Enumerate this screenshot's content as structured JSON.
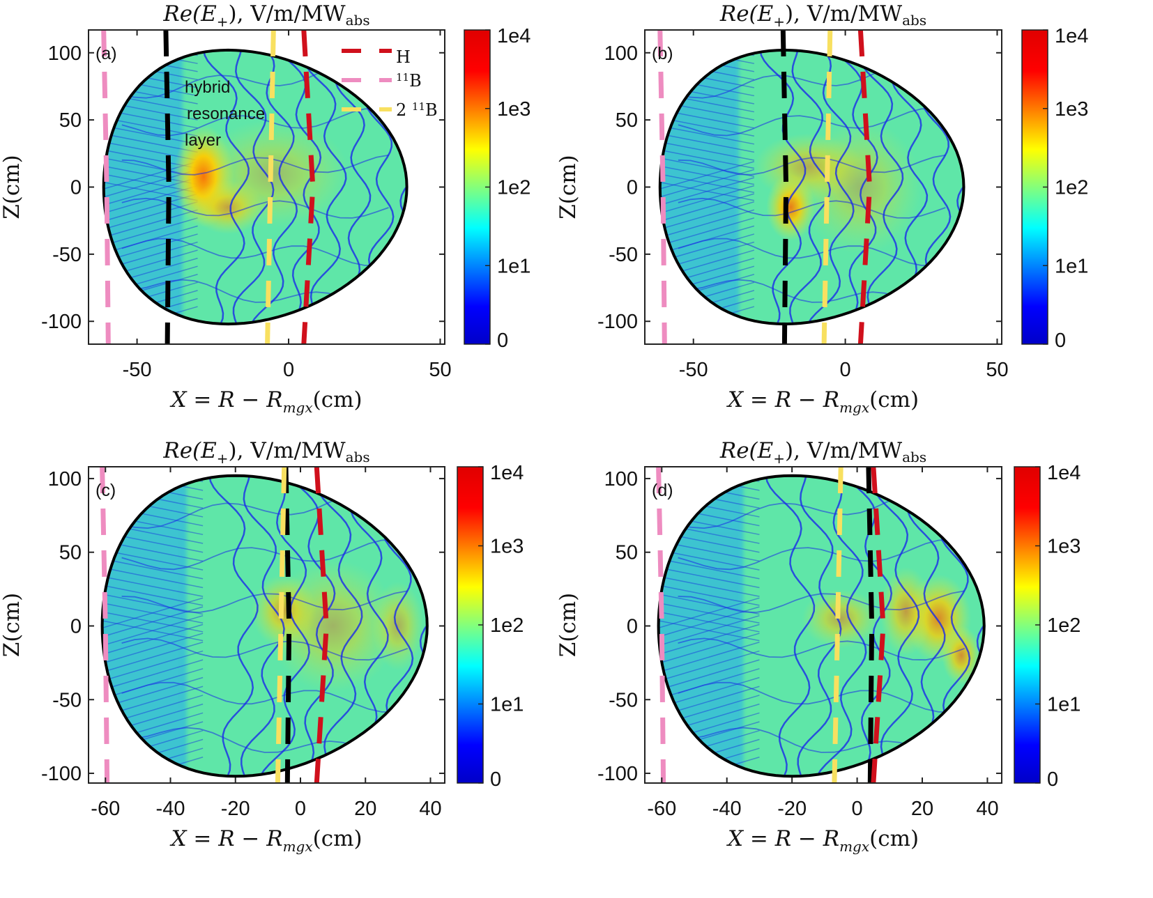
{
  "chart_data": {
    "type": "heatmap",
    "colorbar": {
      "scale": "log (symmetric, 0 at bottom)",
      "tick_labels": [
        "0",
        "1e1",
        "1e2",
        "1e3",
        "1e4"
      ],
      "colormap": [
        "#0000c8",
        "#0000ff",
        "#00ffff",
        "#ffff00",
        "#ff0000",
        "#d00000"
      ]
    },
    "resonance_colors": {
      "H": "#d0101c",
      "B11": "#ee8cc0",
      "B11_2": "#f8e060",
      "hybrid": "#000000"
    },
    "legend": [
      {
        "key": "H",
        "label": "H",
        "sup": "",
        "prefix": ""
      },
      {
        "key": "B11",
        "label": "B",
        "sup": "11",
        "prefix": ""
      },
      {
        "key": "B11_2",
        "label": "B",
        "sup": "11",
        "prefix": "2 "
      }
    ],
    "annotation": [
      "hybrid",
      "resonance",
      "layer"
    ],
    "panels": [
      {
        "id": "a",
        "label": "(a)",
        "title": {
          "a": "Re(E",
          "b": "+",
          "c": "), V/m/MW",
          "d": "abs"
        },
        "xlabel": {
          "a": "X = R − R",
          "b": "mgx",
          "c": "(cm)"
        },
        "ylabel": "Z(cm)",
        "xlim": [
          -66,
          51.5
        ],
        "ylim": [
          -117,
          117
        ],
        "xticks": [
          -50,
          0,
          50
        ],
        "yticks": [
          -100,
          -50,
          0,
          50,
          100
        ],
        "hybrid_x": -40,
        "hot": [
          [
            -28,
            8,
            10,
            38,
            0.95
          ],
          [
            -20,
            -15,
            12,
            20,
            0.6
          ],
          [
            -5,
            10,
            25,
            40,
            0.35
          ]
        ],
        "show_legend": true,
        "show_annotation": true
      },
      {
        "id": "b",
        "label": "(b)",
        "title": {
          "a": "Re(E",
          "b": "+",
          "c": "), V/m/MW",
          "d": "abs"
        },
        "xlabel": {
          "a": "X = R − R",
          "b": "mgx",
          "c": "(cm)"
        },
        "ylabel": "Z(cm)",
        "xlim": [
          -66,
          51.5
        ],
        "ylim": [
          -117,
          117
        ],
        "xticks": [
          -50,
          0,
          50
        ],
        "yticks": [
          -100,
          -50,
          0,
          50,
          100
        ],
        "hybrid_x": -20,
        "hot": [
          [
            -18,
            -15,
            8,
            25,
            0.85
          ],
          [
            -12,
            15,
            18,
            25,
            0.5
          ],
          [
            5,
            0,
            20,
            50,
            0.35
          ]
        ],
        "show_legend": false,
        "show_annotation": false
      },
      {
        "id": "c",
        "label": "(c)",
        "title": {
          "a": "Re(E",
          "b": "+",
          "c": "), V/m/MW",
          "d": "abs"
        },
        "xlabel": {
          "a": "X = R − R",
          "b": "mgx",
          "c": "(cm)"
        },
        "ylabel": "Z(cm)",
        "xlim": [
          -65.2,
          44.4
        ],
        "ylim": [
          -106.6,
          108
        ],
        "xticks": [
          -60,
          -40,
          -20,
          0,
          20,
          40
        ],
        "yticks": [
          -100,
          -50,
          0,
          50,
          100
        ],
        "hybrid_x": -4,
        "hot": [
          [
            -5,
            10,
            10,
            25,
            0.6
          ],
          [
            10,
            0,
            20,
            45,
            0.4
          ],
          [
            30,
            0,
            8,
            30,
            0.45
          ]
        ],
        "show_legend": false,
        "show_annotation": false
      },
      {
        "id": "d",
        "label": "(d)",
        "title": {
          "a": "Re(E",
          "b": "+",
          "c": "), V/m/MW",
          "d": "abs"
        },
        "xlabel": {
          "a": "X = R − R",
          "b": "mgx",
          "c": "(cm)"
        },
        "ylabel": "Z(cm)",
        "xlim": [
          -65.2,
          44.4
        ],
        "ylim": [
          -106.6,
          108
        ],
        "xticks": [
          -60,
          -40,
          -20,
          0,
          20,
          40
        ],
        "yticks": [
          -100,
          -50,
          0,
          50,
          100
        ],
        "hybrid_x": 4,
        "hot": [
          [
            25,
            5,
            10,
            30,
            0.75
          ],
          [
            32,
            -20,
            6,
            20,
            0.7
          ],
          [
            15,
            10,
            8,
            30,
            0.6
          ],
          [
            -5,
            5,
            12,
            20,
            0.5
          ]
        ],
        "show_legend": false,
        "show_annotation": false
      }
    ],
    "resonances": {
      "B11_x": -60,
      "B11_2_x": -6,
      "H_x": 6
    }
  }
}
